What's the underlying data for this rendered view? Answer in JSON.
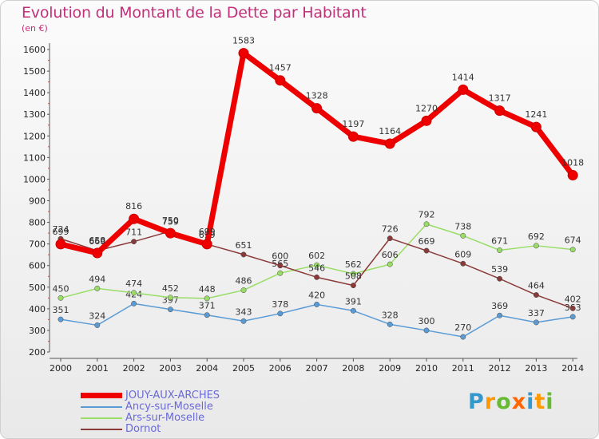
{
  "title": "Evolution du Montant de la Dette par Habitant",
  "unit_label": "(en €)",
  "logo_text": "Proxiti",
  "chart_data": {
    "type": "line",
    "title": "Evolution du Montant de la Dette par Habitant",
    "ylabel": "(en €)",
    "x": [
      "2000",
      "2001",
      "2002",
      "2003",
      "2004",
      "2005",
      "2006",
      "2007",
      "2008",
      "2009",
      "2010",
      "2011",
      "2012",
      "2013",
      "2014"
    ],
    "ylim": [
      200,
      1600
    ],
    "yticks": [
      "200",
      "300",
      "400",
      "500",
      "600",
      "700",
      "800",
      "900",
      "1000",
      "1100",
      "1200",
      "1300",
      "1400",
      "1500",
      "1600"
    ],
    "grid": false,
    "legend_position": "bottom-left",
    "series": [
      {
        "name": "JOUY-AUX-ARCHES",
        "color": "#ee0000",
        "values": [
          699,
          658,
          816,
          750,
          699,
          1583,
          1457,
          1328,
          1197,
          1164,
          1270,
          1414,
          1317,
          1241,
          1018
        ],
        "labels": [
          "699",
          "658",
          "816",
          "750",
          "699",
          "1583",
          "1457",
          "1328",
          "1197",
          "1164",
          "1270",
          "1414",
          "1317",
          "1241",
          "1018"
        ]
      },
      {
        "name": "Ancy-sur-Moselle",
        "color": "#5b9bd5",
        "values": [
          351,
          324,
          424,
          397,
          371,
          343,
          378,
          420,
          391,
          328,
          300,
          270,
          369,
          337,
          363
        ],
        "labels": [
          "351",
          "324",
          "424",
          "397",
          "371",
          "343",
          "378",
          "420",
          "391",
          "328",
          "300",
          "270",
          "369",
          "337",
          "363"
        ]
      },
      {
        "name": "Ars-sur-Moselle",
        "color": "#99dd66",
        "values": [
          450,
          494,
          474,
          452,
          448,
          486,
          565,
          602,
          562,
          606,
          792,
          738,
          671,
          692,
          674
        ],
        "labels": [
          "450",
          "494",
          "474",
          "452",
          "448",
          "486",
          "565",
          "602",
          "562",
          "606",
          "792",
          "738",
          "671",
          "692",
          "674"
        ]
      },
      {
        "name": "Dornot",
        "color": "#8b3a3a",
        "values": [
          724,
          669,
          711,
          759,
          699,
          651,
          600,
          546,
          508,
          726,
          669,
          609,
          539,
          464,
          402
        ],
        "labels": [
          "724",
          "669",
          "711",
          "759",
          "699",
          "651",
          "600",
          "546",
          "508",
          "726",
          "669",
          "609",
          "539",
          "464",
          "402"
        ]
      }
    ]
  }
}
